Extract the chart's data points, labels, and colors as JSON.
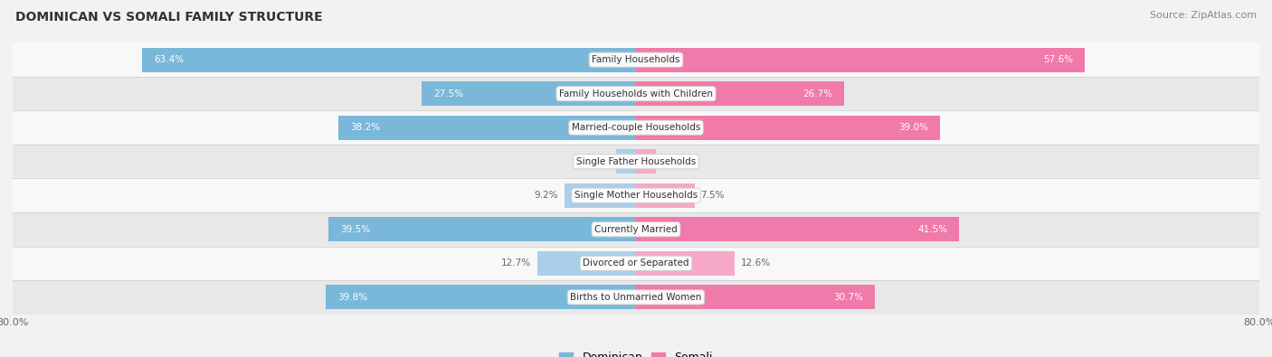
{
  "title": "DOMINICAN VS SOMALI FAMILY STRUCTURE",
  "source": "Source: ZipAtlas.com",
  "categories": [
    "Family Households",
    "Family Households with Children",
    "Married-couple Households",
    "Single Father Households",
    "Single Mother Households",
    "Currently Married",
    "Divorced or Separated",
    "Births to Unmarried Women"
  ],
  "dominican": [
    63.4,
    27.5,
    38.2,
    2.5,
    9.2,
    39.5,
    12.7,
    39.8
  ],
  "somali": [
    57.6,
    26.7,
    39.0,
    2.5,
    7.5,
    41.5,
    12.6,
    30.7
  ],
  "max_val": 80.0,
  "dominican_color": "#7ab8d9",
  "somali_color": "#f07aaa",
  "dominican_small_color": "#aacfe8",
  "somali_small_color": "#f5a8c8",
  "bg_color": "#f2f2f2",
  "row_bg_light": "#f8f8f8",
  "row_bg_dark": "#e8e8e8",
  "label_outside_color": "#666666",
  "label_inside_color": "#ffffff",
  "title_color": "#333333",
  "source_color": "#888888",
  "center_label_color": "#333333",
  "threshold_inside": 15
}
